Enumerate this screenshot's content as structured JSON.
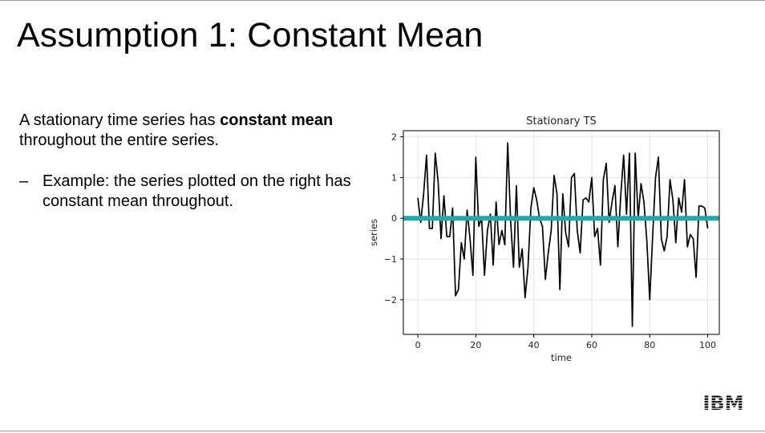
{
  "slide": {
    "title": "Assumption 1: Constant Mean",
    "paragraph_plain": "A stationary time series has ",
    "paragraph_bold": "constant mean",
    "paragraph_rest": "throughout the entire series.",
    "bullet_dash": "–",
    "bullet_text": "Example: the series plotted on the right has constant mean throughout."
  },
  "logo": {
    "text": "IBM",
    "color": "#000000"
  },
  "chart_data": {
    "type": "line",
    "title": "Stationary TS",
    "xlabel": "time",
    "ylabel": "series",
    "xlim": [
      -5,
      104
    ],
    "ylim": [
      -2.85,
      2.15
    ],
    "xticks": [
      0,
      20,
      40,
      60,
      80,
      100
    ],
    "yticks": [
      -2,
      -1,
      0,
      1,
      2
    ],
    "xtick_labels": [
      "0",
      "20",
      "40",
      "60",
      "80",
      "100"
    ],
    "ytick_labels": [
      "−2",
      "−1",
      "0",
      "1",
      "2"
    ],
    "grid": true,
    "series": [
      {
        "color": "#000000",
        "values": [
          0.5,
          -0.1,
          0.6,
          1.55,
          -0.25,
          -0.25,
          1.6,
          0.9,
          -0.5,
          0.55,
          -0.45,
          -0.45,
          0.25,
          -1.9,
          -1.75,
          -0.6,
          -1.0,
          0.2,
          -0.5,
          -1.4,
          1.5,
          -0.2,
          0.0,
          -1.4,
          -0.3,
          0.1,
          -1.15,
          0.4,
          -0.65,
          -0.3,
          -0.65,
          1.85,
          -0.05,
          -1.2,
          0.8,
          -1.2,
          -0.75,
          -1.95,
          -1.2,
          0.25,
          0.75,
          0.45,
          0.0,
          -0.2,
          -1.5,
          -0.85,
          -0.3,
          1.05,
          0.6,
          -1.75,
          0.6,
          -0.35,
          -0.7,
          1.0,
          1.1,
          -0.3,
          -0.85,
          0.45,
          0.5,
          0.4,
          1.0,
          -0.45,
          -0.25,
          -1.15,
          0.95,
          1.35,
          -0.1,
          0.4,
          0.8,
          -0.7,
          0.55,
          1.55,
          0.1,
          1.6,
          -2.65,
          1.6,
          0.0,
          0.85,
          0.4,
          -0.55,
          -2.0,
          -0.45,
          1.0,
          1.5,
          -0.5,
          -0.8,
          -0.45,
          0.95,
          0.45,
          -0.6,
          0.5,
          0.15,
          0.95,
          -0.7,
          -0.4,
          -0.5,
          -1.45,
          0.3,
          0.3,
          0.25,
          -0.25
        ]
      }
    ],
    "mean_line": {
      "value": 0,
      "color": "#2aa6a4"
    }
  }
}
